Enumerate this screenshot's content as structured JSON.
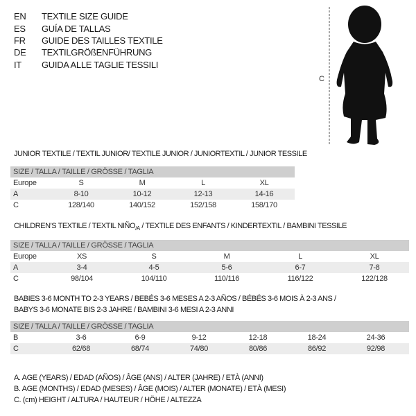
{
  "languages": [
    {
      "code": "EN",
      "text": "TEXTILE SIZE GUIDE"
    },
    {
      "code": "ES",
      "text": "GUÍA DE TALLAS"
    },
    {
      "code": "FR",
      "text": "GUIDE DES TAILLES TEXTILE"
    },
    {
      "code": "DE",
      "text": "TEXTILGRÖßENFÜHRUNG"
    },
    {
      "code": "IT",
      "text": "GUIDA ALLE TAGLIE TESSILI"
    }
  ],
  "figure": {
    "measure_label": "C"
  },
  "junior": {
    "title": "JUNIOR TEXTILE / TEXTIL JUNIOR/ TEXTILE JUNIOR / JUNIORTEXTIL / JUNIOR TESSILE",
    "header": "SIZE / TALLA / TAILLE / GRÖSSE / TAGLIA",
    "rows": [
      {
        "label": "Europe",
        "values": [
          "S",
          "M",
          "L",
          "XL"
        ]
      },
      {
        "label": "A",
        "values": [
          "8-10",
          "10-12",
          "12-13",
          "14-16"
        ]
      },
      {
        "label": "C",
        "values": [
          "128/140",
          "140/152",
          "152/158",
          "158/170"
        ]
      }
    ]
  },
  "children": {
    "title_a": "CHILDREN'S TEXTILE / TEXTIL NIÑO",
    "title_sub": "/A",
    "title_b": " / TEXTILE DES ENFANTS / KINDERTEXTIL / BAMBINI TESSILE",
    "header": "SIZE / TALLA / TAILLE / GRÖSSE / TAGLIA",
    "rows": [
      {
        "label": "Europe",
        "values": [
          "XS",
          "S",
          "M",
          "L",
          "XL"
        ]
      },
      {
        "label": "A",
        "values": [
          "3-4",
          "4-5",
          "5-6",
          "6-7",
          "7-8"
        ]
      },
      {
        "label": "C",
        "values": [
          "98/104",
          "104/110",
          "110/116",
          "116/122",
          "122/128"
        ]
      }
    ]
  },
  "babies": {
    "title_line1": "BABIES 3-6 MONTH TO 2-3 YEARS / BEBÉS 3-6 MESES A 2-3 AÑOS / BÉBÉS 3-6 MOIS À 2-3 ANS /",
    "title_line2": "BABYS 3-6 MONATE BIS 2-3 JAHRE / BAMBINI 3-6 MESI A 2-3 ANNI",
    "header": "SIZE / TALLA / TAILLE / GRÖSSE / TAGLIA",
    "rows": [
      {
        "label": "B",
        "values": [
          "3-6",
          "6-9",
          "9-12",
          "12-18",
          "18-24",
          "24-36"
        ]
      },
      {
        "label": "C",
        "values": [
          "62/68",
          "68/74",
          "74/80",
          "80/86",
          "86/92",
          "92/98"
        ]
      }
    ]
  },
  "legend": [
    "A. AGE (YEARS) / EDAD (AÑOS) / ÂGE (ANS) / ALTER (JAHRE) / ETÀ (ANNI)",
    "B. AGE (MONTHS) / EDAD (MESES) / ÂGE (MOIS) / ALTER (MONATE) / ETÀ (MESI)",
    "C. (cm) HEIGHT / ALTURA / HAUTEUR / HÖHE / ALTEZZA"
  ]
}
